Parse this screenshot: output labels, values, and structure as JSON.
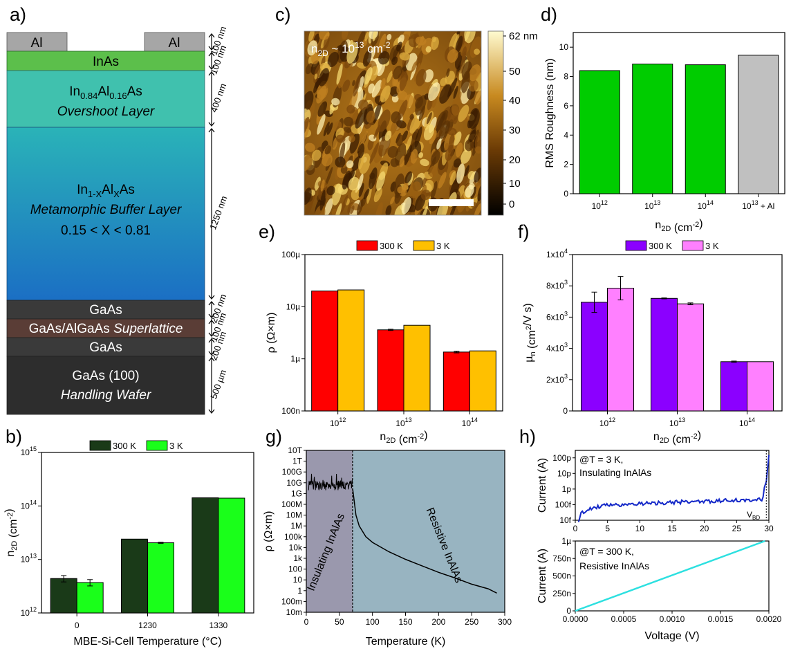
{
  "panel_labels": [
    "a)",
    "b)",
    "c)",
    "d)",
    "e)",
    "f)",
    "g)",
    "h)"
  ],
  "colors": {
    "al": "#a6a6a6",
    "inas": "#5cbf4b",
    "overshoot": "#40c1ae",
    "buffer_top": "#2ab3b8",
    "buffer_bottom": "#1b6fc4",
    "gaas": "#3a3a3a",
    "superlattice": "#5a3d36",
    "wafer": "#2d2d2d",
    "red": "#ff0000",
    "gold": "#ffc000",
    "green": "#00cc00",
    "gray": "#c0c0c0",
    "purple": "#8b00ff",
    "pink": "#ff80ff",
    "darkgreen": "#1a3a18",
    "lightgreen": "#1aff1a",
    "blue": "#1428c8",
    "cyan": "#2de0e0",
    "insul_bg": "#9a98ad",
    "resist_bg": "#98b4c1"
  },
  "panel_a": {
    "al_label": "Al",
    "layers": [
      {
        "name": "inas",
        "line1": "InAs"
      },
      {
        "name": "overshoot",
        "line1": "In0.84Al0.16As",
        "line2": "Overshoot Layer"
      },
      {
        "name": "buffer",
        "line1": "In1-XAlXAs",
        "line2": "Metamorphic Buffer Layer",
        "line3": "0.15 < X < 0.81"
      },
      {
        "name": "gaas1",
        "line1": "GaAs"
      },
      {
        "name": "superlattice",
        "line1": "GaAs/AlGaAs",
        "line1b": "Superlattice"
      },
      {
        "name": "gaas2",
        "line1": "GaAs"
      },
      {
        "name": "wafer",
        "line1": "GaAs (100)",
        "line2": "Handling Wafer"
      }
    ],
    "thickness_labels": [
      "100 nm",
      "100 nm",
      "400 nm",
      "1250 nm",
      "200 nm",
      "100 nm",
      "200 nm",
      "500 µm"
    ]
  },
  "panel_c": {
    "annotation": "n2D ~ 10^13 cm^-2",
    "colorbar_ticks": [
      "62 nm",
      "50",
      "40",
      "30",
      "20",
      "10",
      "0"
    ]
  },
  "chart_data": [
    {
      "id": "b",
      "type": "bar",
      "scale": "log",
      "ylabel": "n2D (cm^-2)",
      "xlabel": "MBE-Si-Cell Temperature (°C)",
      "categories": [
        "0",
        "1230",
        "1330"
      ],
      "ylim": [
        1000000000000.0,
        1000000000000000.0
      ],
      "yticks": [
        "10^12",
        "10^13",
        "10^14",
        "10^15"
      ],
      "series": [
        {
          "name": "300 K",
          "values": [
            4400000000000.0,
            24000000000000.0,
            142000000000000.0
          ],
          "errors": [
            600000000000.0,
            0,
            0
          ]
        },
        {
          "name": "3 K",
          "values": [
            3700000000000.0,
            20500000000000.0,
            140000000000000.0
          ],
          "errors": [
            500000000000.0,
            500000000000.0,
            0
          ]
        }
      ]
    },
    {
      "id": "d",
      "type": "bar",
      "scale": "linear",
      "ylabel": "RMS Roughness (nm)",
      "xlabel": "n2D (cm^-2)",
      "categories": [
        "10^12",
        "10^13",
        "10^14",
        "10^13 + Al"
      ],
      "ylim": [
        0,
        11
      ],
      "yticks": [
        "0",
        "2",
        "4",
        "6",
        "8",
        "10"
      ],
      "values": [
        8.4,
        8.85,
        8.8,
        9.45
      ]
    },
    {
      "id": "e",
      "type": "bar",
      "scale": "log",
      "ylabel": "ρ (Ω×m)",
      "xlabel": "n2D (cm^-2)",
      "categories": [
        "10^12",
        "10^13",
        "10^14"
      ],
      "ylim": [
        1e-07,
        0.0001
      ],
      "yticks": [
        "100n",
        "1µ",
        "10µ",
        "100µ"
      ],
      "series": [
        {
          "name": "300 K",
          "values": [
            2e-05,
            3.6e-06,
            1.35e-06
          ],
          "errors": [
            0,
            1e-07,
            5e-08
          ]
        },
        {
          "name": "3 K",
          "values": [
            2.1e-05,
            4.4e-06,
            1.42e-06
          ],
          "errors": [
            0,
            0,
            0
          ]
        }
      ]
    },
    {
      "id": "f",
      "type": "bar",
      "scale": "linear",
      "ylabel": "µn (cm^2/V s)",
      "xlabel": "n2D (cm^-2)",
      "categories": [
        "10^12",
        "10^13",
        "10^14"
      ],
      "ylim": [
        0,
        10000
      ],
      "yticks": [
        "0",
        "2x10^3",
        "4x10^3",
        "6x10^3",
        "8x10^3",
        "1x10^4"
      ],
      "series": [
        {
          "name": "300 K",
          "values": [
            6950,
            7200,
            3150
          ],
          "errors": [
            650,
            30,
            40
          ]
        },
        {
          "name": "3 K",
          "values": [
            7850,
            6850,
            3150
          ],
          "errors": [
            750,
            60,
            0
          ]
        }
      ]
    },
    {
      "id": "g",
      "type": "line",
      "scale": "log",
      "ylabel": "ρ (Ω×m)",
      "xlabel": "Temperature (K)",
      "xlim": [
        0,
        300
      ],
      "xticks": [
        "0",
        "50",
        "100",
        "150",
        "200",
        "250",
        "300"
      ],
      "ylim": [
        0.01,
        10000000000000.0
      ],
      "yticks": [
        "10m",
        "100m",
        "1",
        "10",
        "100",
        "1k",
        "10k",
        "100k",
        "1M",
        "10M",
        "100M",
        "1G",
        "10G",
        "100G",
        "1T",
        "10T"
      ],
      "region_split": 70,
      "region_labels": [
        "Insulating InAlAs",
        "Resistive InAlAs"
      ],
      "resistive_curve": {
        "x": [
          70,
          75,
          80,
          90,
          100,
          125,
          150,
          175,
          200,
          225,
          250,
          275,
          288
        ],
        "y": [
          3000000000.0,
          10000000.0,
          1000000.0,
          100000.0,
          30000.0,
          4000.0,
          800,
          200,
          50,
          15,
          4,
          1.5,
          0.6
        ]
      },
      "insulating_range": [
        5000000000.0,
        20000000000.0
      ]
    },
    {
      "id": "h_top",
      "type": "line",
      "scale": "log",
      "ylabel": "Current (A)",
      "annotation": [
        "@T = 3 K,",
        "Insulating InAlAs"
      ],
      "vbd_label": "VBD",
      "xlim": [
        0,
        30
      ],
      "xticks": [
        "0",
        "5",
        "10",
        "15",
        "20",
        "25",
        "30"
      ],
      "ylim": [
        1e-14,
        3e-10
      ],
      "yticks": [
        "10f",
        "100f",
        "1p",
        "10p",
        "100p"
      ],
      "points": {
        "x": [
          0.5,
          1,
          2,
          3,
          5,
          7,
          10,
          15,
          20,
          25,
          29,
          29.5,
          30
        ],
        "y": [
          1e-14,
          3e-14,
          5e-14,
          7e-14,
          9e-14,
          1e-13,
          1.2e-13,
          1.4e-13,
          1.6e-13,
          1.9e-13,
          2.2e-13,
          3e-12,
          1.5e-10
        ]
      }
    },
    {
      "id": "h_bottom",
      "type": "line",
      "scale": "linear",
      "ylabel": "Current (A)",
      "xlabel": "Voltage (V)",
      "annotation": [
        "@T = 300 K,",
        "Resistive InAlAs"
      ],
      "xlim": [
        0,
        0.002
      ],
      "xticks": [
        "0.0000",
        "0.0005",
        "0.0010",
        "0.0015",
        "0.0020"
      ],
      "ylim": [
        0,
        1e-06
      ],
      "yticks": [
        "0",
        "250n",
        "500n",
        "750n",
        "1µ"
      ],
      "points": {
        "x": [
          0,
          0.00196
        ],
        "y": [
          0,
          1e-06
        ]
      }
    }
  ]
}
